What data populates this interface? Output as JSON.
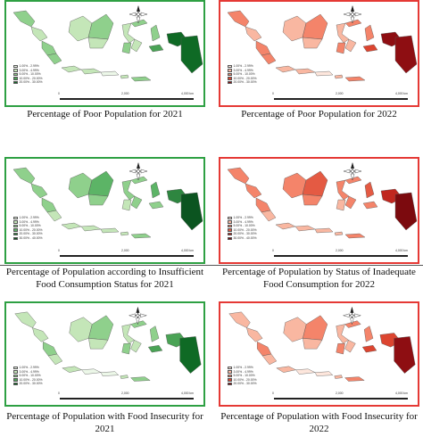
{
  "panels": [
    {
      "id": "p1",
      "theme": "green",
      "caption": "Percentage of Poor Population for 2021",
      "legend": [
        "1.00% - 2.99%",
        "3.00% - 4.99%",
        "5.00% - 10.00%",
        "10.00% - 20.00%",
        "20.00% - 30.00%"
      ],
      "colors": [
        "#ecf7e8",
        "#c4e6b8",
        "#8fd08c",
        "#4aa355",
        "#0f6a25"
      ],
      "scale": [
        "0",
        "2,000",
        "4,000 km"
      ]
    },
    {
      "id": "p2",
      "theme": "red",
      "caption": "Percentage of Poor Population for 2022",
      "legend": [
        "1.00% - 2.99%",
        "3.00% - 4.99%",
        "5.00% - 10.00%",
        "10.00% - 20.00%",
        "20.00% - 30.00%"
      ],
      "colors": [
        "#fde6dc",
        "#f9b7a1",
        "#f4846a",
        "#dc4530",
        "#8e0e12"
      ],
      "scale": [
        "0",
        "2,000",
        "4,000 km"
      ]
    },
    {
      "id": "p3",
      "theme": "green",
      "caption": "Percentage of Population according to Insufficient Food Consumption Status for 2021",
      "legend": [
        "1.00% - 2.99%",
        "3.00% - 4.99%",
        "5.00% - 10.00%",
        "10.00% - 20.00%",
        "20.00% - 30.00%",
        "30.00% - 40.00%"
      ],
      "colors": [
        "#ecf7e8",
        "#c4e6b8",
        "#8fd08c",
        "#5cb466",
        "#2e8640",
        "#0b5420"
      ],
      "scale": [
        "0",
        "2,000",
        "4,000 km"
      ]
    },
    {
      "id": "p4",
      "theme": "red",
      "caption": "Percentage of Population by Status of Inadequate Food Consumption for 2022",
      "legend": [
        "1.00% - 2.99%",
        "3.00% - 4.99%",
        "5.00% - 10.00%",
        "10.00% - 20.00%",
        "20.00% - 30.00%",
        "30.00% - 40.00%"
      ],
      "colors": [
        "#fde6dc",
        "#f9b7a1",
        "#f4846a",
        "#e45a43",
        "#c0271f",
        "#7c0a0e"
      ],
      "scale": [
        "0",
        "2,000",
        "4,000 km"
      ]
    },
    {
      "id": "p5",
      "theme": "green",
      "caption": "Percentage of Population with Food Insecurity for 2021",
      "legend": [
        "1.00% - 2.99%",
        "3.00% - 4.99%",
        "5.00% - 10.00%",
        "10.00% - 20.00%",
        "20.00% - 30.00%"
      ],
      "colors": [
        "#ecf7e8",
        "#c4e6b8",
        "#8fd08c",
        "#4aa355",
        "#0f6a25"
      ],
      "scale": [
        "0",
        "2,000",
        "4,000 km"
      ]
    },
    {
      "id": "p6",
      "theme": "red",
      "caption": "Percentage of Population with Food Insecurity for 2022",
      "legend": [
        "1.00% - 2.99%",
        "3.00% - 4.99%",
        "5.00% - 10.00%",
        "10.00% - 20.00%",
        "20.00% - 30.00%"
      ],
      "colors": [
        "#fde6dc",
        "#f9b7a1",
        "#f4846a",
        "#dc4530",
        "#8e0e12"
      ],
      "scale": [
        "0",
        "2,000",
        "4,000 km"
      ]
    }
  ],
  "region_classes": {
    "p1": [
      2,
      1,
      2,
      2,
      1,
      1,
      0,
      1,
      2,
      1,
      1,
      2,
      2,
      1,
      1,
      2,
      2,
      3,
      4,
      4
    ],
    "p2": [
      2,
      1,
      2,
      2,
      1,
      1,
      0,
      1,
      2,
      1,
      1,
      2,
      2,
      1,
      1,
      2,
      2,
      3,
      4,
      4
    ],
    "p3": [
      2,
      2,
      2,
      1,
      1,
      1,
      1,
      2,
      3,
      2,
      2,
      2,
      1,
      2,
      1,
      2,
      3,
      2,
      4,
      5
    ],
    "p4": [
      2,
      2,
      2,
      1,
      1,
      1,
      1,
      2,
      3,
      2,
      2,
      2,
      1,
      2,
      1,
      2,
      3,
      2,
      4,
      5
    ],
    "p5": [
      1,
      1,
      2,
      1,
      1,
      0,
      0,
      1,
      2,
      1,
      1,
      2,
      2,
      1,
      1,
      2,
      2,
      3,
      3,
      4
    ],
    "p6": [
      1,
      1,
      2,
      1,
      1,
      0,
      0,
      1,
      2,
      1,
      1,
      2,
      2,
      1,
      1,
      2,
      2,
      3,
      3,
      4
    ]
  }
}
